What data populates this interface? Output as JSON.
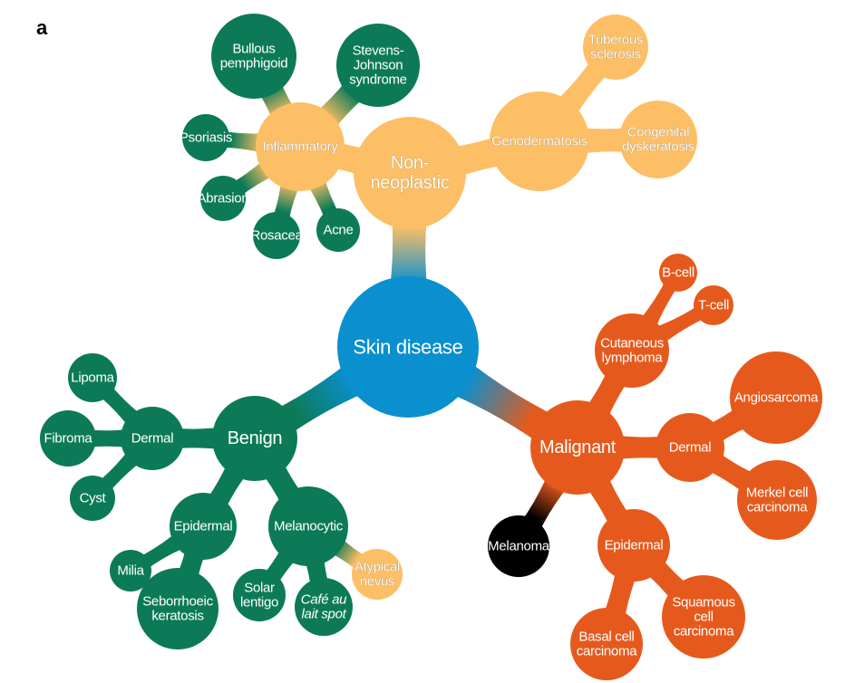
{
  "panel_label": "a",
  "colors": {
    "root": "#0a90cf",
    "non_neoplastic": "#fdbf65",
    "malignant": "#e55a1c",
    "green": "#0c7a57",
    "melanoma": "#000000",
    "text": "#ffffff"
  },
  "nodes": [
    {
      "id": "skin-disease",
      "lines": [
        "Skin disease"
      ],
      "group": "root"
    },
    {
      "id": "non-neoplastic",
      "lines": [
        "Non-",
        "neoplastic"
      ],
      "group": "non_neoplastic"
    },
    {
      "id": "inflammatory",
      "lines": [
        "Inflammatory"
      ],
      "group": "non_neoplastic"
    },
    {
      "id": "genodermatosis",
      "lines": [
        "Genodermatosis"
      ],
      "group": "non_neoplastic"
    },
    {
      "id": "tuberous-sclerosis",
      "lines": [
        "Tuberous",
        "sclerosis"
      ],
      "group": "non_neoplastic"
    },
    {
      "id": "congenital-dyskeratosis",
      "lines": [
        "Congenital",
        "dyskeratosis"
      ],
      "group": "non_neoplastic"
    },
    {
      "id": "bullous-pemphigoid",
      "lines": [
        "Bullous",
        "pemphigoid"
      ],
      "group": "green"
    },
    {
      "id": "stevens-johnson",
      "lines": [
        "Stevens-",
        "Johnson",
        "syndrome"
      ],
      "group": "green"
    },
    {
      "id": "psoriasis",
      "lines": [
        "Psoriasis"
      ],
      "group": "green"
    },
    {
      "id": "abrasion",
      "lines": [
        "Abrasion"
      ],
      "group": "green"
    },
    {
      "id": "rosacea",
      "lines": [
        "Rosacea"
      ],
      "group": "green"
    },
    {
      "id": "acne",
      "lines": [
        "Acne"
      ],
      "group": "green"
    },
    {
      "id": "benign",
      "lines": [
        "Benign"
      ],
      "group": "green"
    },
    {
      "id": "benign-dermal",
      "lines": [
        "Dermal"
      ],
      "group": "green"
    },
    {
      "id": "lipoma",
      "lines": [
        "Lipoma"
      ],
      "group": "green"
    },
    {
      "id": "fibroma",
      "lines": [
        "Fibroma"
      ],
      "group": "green"
    },
    {
      "id": "cyst",
      "lines": [
        "Cyst"
      ],
      "group": "green"
    },
    {
      "id": "benign-epidermal",
      "lines": [
        "Epidermal"
      ],
      "group": "green"
    },
    {
      "id": "milia",
      "lines": [
        "Milia"
      ],
      "group": "green"
    },
    {
      "id": "seborrhoeic-keratosis",
      "lines": [
        "Seborrhoeic",
        "keratosis"
      ],
      "group": "green"
    },
    {
      "id": "melanocytic",
      "lines": [
        "Melanocytic"
      ],
      "group": "green"
    },
    {
      "id": "solar-lentigo",
      "lines": [
        "Solar",
        "lentigo"
      ],
      "group": "green"
    },
    {
      "id": "cafe-au-lait",
      "lines": [
        "Café au",
        "lait spot"
      ],
      "group": "green",
      "italic_first": true
    },
    {
      "id": "atypical-nevus",
      "lines": [
        "Atypical",
        "nevus"
      ],
      "group": "non_neoplastic"
    },
    {
      "id": "malignant",
      "lines": [
        "Malignant"
      ],
      "group": "malignant"
    },
    {
      "id": "cutaneous-lymphoma",
      "lines": [
        "Cutaneous",
        "lymphoma"
      ],
      "group": "malignant"
    },
    {
      "id": "b-cell",
      "lines": [
        "B-cell"
      ],
      "group": "malignant"
    },
    {
      "id": "t-cell",
      "lines": [
        "T-cell"
      ],
      "group": "malignant"
    },
    {
      "id": "malignant-dermal",
      "lines": [
        "Dermal"
      ],
      "group": "malignant"
    },
    {
      "id": "angiosarcoma",
      "lines": [
        "Angiosarcoma"
      ],
      "group": "malignant"
    },
    {
      "id": "merkel-cell",
      "lines": [
        "Merkel cell",
        "carcinoma"
      ],
      "group": "malignant"
    },
    {
      "id": "malignant-epidermal",
      "lines": [
        "Epidermal"
      ],
      "group": "malignant"
    },
    {
      "id": "squamous-cell",
      "lines": [
        "Squamous",
        "cell",
        "carcinoma"
      ],
      "group": "malignant"
    },
    {
      "id": "basal-cell",
      "lines": [
        "Basal cell",
        "carcinoma"
      ],
      "group": "malignant"
    },
    {
      "id": "melanoma",
      "lines": [
        "Melanoma"
      ],
      "group": "melanoma"
    }
  ],
  "edges": [
    [
      "skin-disease",
      "non-neoplastic"
    ],
    [
      "skin-disease",
      "benign"
    ],
    [
      "skin-disease",
      "malignant"
    ],
    [
      "non-neoplastic",
      "inflammatory"
    ],
    [
      "non-neoplastic",
      "genodermatosis"
    ],
    [
      "genodermatosis",
      "tuberous-sclerosis"
    ],
    [
      "genodermatosis",
      "congenital-dyskeratosis"
    ],
    [
      "inflammatory",
      "bullous-pemphigoid"
    ],
    [
      "inflammatory",
      "stevens-johnson"
    ],
    [
      "inflammatory",
      "psoriasis"
    ],
    [
      "inflammatory",
      "abrasion"
    ],
    [
      "inflammatory",
      "rosacea"
    ],
    [
      "inflammatory",
      "acne"
    ],
    [
      "benign",
      "benign-dermal"
    ],
    [
      "benign-dermal",
      "lipoma"
    ],
    [
      "benign-dermal",
      "fibroma"
    ],
    [
      "benign-dermal",
      "cyst"
    ],
    [
      "benign",
      "benign-epidermal"
    ],
    [
      "benign-epidermal",
      "milia"
    ],
    [
      "benign-epidermal",
      "seborrhoeic-keratosis"
    ],
    [
      "benign",
      "melanocytic"
    ],
    [
      "melanocytic",
      "solar-lentigo"
    ],
    [
      "melanocytic",
      "cafe-au-lait"
    ],
    [
      "melanocytic",
      "atypical-nevus"
    ],
    [
      "malignant",
      "cutaneous-lymphoma"
    ],
    [
      "cutaneous-lymphoma",
      "b-cell"
    ],
    [
      "cutaneous-lymphoma",
      "t-cell"
    ],
    [
      "malignant",
      "malignant-dermal"
    ],
    [
      "malignant-dermal",
      "angiosarcoma"
    ],
    [
      "malignant-dermal",
      "merkel-cell"
    ],
    [
      "malignant",
      "malignant-epidermal"
    ],
    [
      "malignant-epidermal",
      "squamous-cell"
    ],
    [
      "malignant-epidermal",
      "basal-cell"
    ],
    [
      "malignant",
      "melanoma"
    ]
  ]
}
